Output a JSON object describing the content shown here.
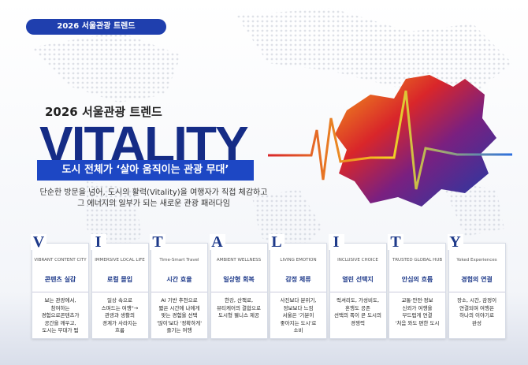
{
  "header": {
    "badge": "2026 서울관광 트렌드",
    "subtitle": "2026 서울관광 트렌드",
    "title": "VITALITY",
    "banner": "도시 전체가 ‘살아 움직이는 관광 무대’",
    "description": [
      "단순한 방문을 넘어, 도시의 활력(Vitality)을 여행자가 직접 체감하고",
      "그 에너지의 일부가 되는 새로운 관광 패러다임"
    ]
  },
  "cards": [
    {
      "letter": "V",
      "english": "VIBRANT CONTENT CITY",
      "korean": "콘텐츠 실감",
      "lines": [
        "보는 관광에서,",
        "참여하는",
        "경험으로콘텐츠가",
        "공간을 깨우고,",
        "도시는 무대가 됨"
      ]
    },
    {
      "letter": "I",
      "english": "IMMERSIVE LOCAL LIFE",
      "korean": "로컬 몰입",
      "lines": [
        "일상 속으로",
        "스며드는 여행\"→",
        "관광과 생활의",
        "경계가 사라지는",
        "흐름"
      ]
    },
    {
      "letter": "T",
      "english": "Time-Smart Travel",
      "korean": "시간 효율",
      "lines": [
        "AI 기반 추천으로",
        "짧은 시간에 나에게",
        "맞는 경험을 선택",
        "'많이'보다 '정확하게'",
        "즐기는 여행"
      ]
    },
    {
      "letter": "A",
      "english": "AMBIENT WELLNESS",
      "korean": "일상형 회복",
      "lines": [
        "한강, 산책로,",
        "뷰티케어의 결합으로",
        "도시형 웰니스 제공"
      ]
    },
    {
      "letter": "L",
      "english": "LIVING EMOTION",
      "korean": "감정 체류",
      "lines": [
        "사진보다 분위기,",
        "정보보다 느낌",
        "서울은 '기분이",
        "좋아지는 도시'로",
        "소비"
      ]
    },
    {
      "letter": "I",
      "english": "INCLUSIVE CHOICE",
      "korean": "열린 선택지",
      "lines": [
        "럭셔리도, 가성비도,",
        "혼행도 공존",
        "선택의 폭이 곧 도시의",
        "경쟁력"
      ]
    },
    {
      "letter": "T",
      "english": "TRUSTED GLOBAL HUB",
      "korean": "안심의 흐름",
      "lines": [
        "교통·안전·정보",
        "신뢰가 여행을",
        "부드럽게 연결",
        "'처음 와도 편한 도시"
      ]
    },
    {
      "letter": "Y",
      "english": "Yoked Experiences",
      "korean": "경험의 연결",
      "lines": [
        "장소, 시간, 감정이",
        "연결되며 여행은",
        "하나의 이야기로",
        "완성"
      ]
    }
  ]
}
